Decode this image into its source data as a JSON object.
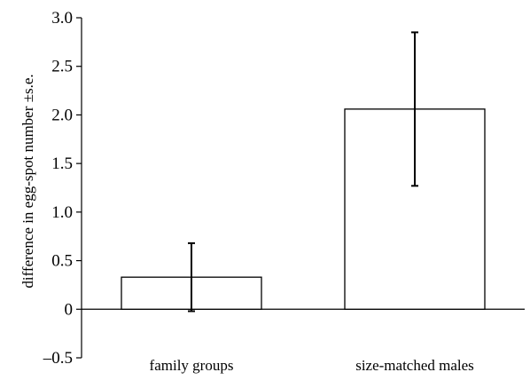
{
  "chart_data": {
    "type": "bar",
    "categories": [
      "family groups",
      "size-matched males"
    ],
    "values": [
      0.33,
      2.06
    ],
    "error": [
      0.35,
      0.79
    ],
    "title": "",
    "xlabel": "",
    "ylabel": "difference in egg-spot number ±s.e.",
    "ylim": [
      -0.5,
      3.0
    ],
    "yticks": [
      -0.5,
      0,
      0.5,
      1.0,
      1.5,
      2.0,
      2.5,
      3.0
    ],
    "ytick_labels": [
      "–0.5",
      "0",
      "0.5",
      "1.0",
      "1.5",
      "2.0",
      "2.5",
      "3.0"
    ],
    "bar_fill": "#ffffff",
    "bar_stroke": "#000000",
    "grid": false,
    "legend": "none"
  }
}
